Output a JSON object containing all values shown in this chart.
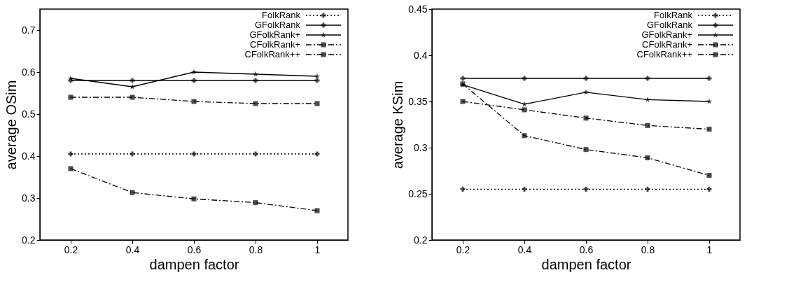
{
  "chart_data": [
    {
      "type": "line",
      "xlabel": "dampen factor",
      "ylabel": "average OSim",
      "x": [
        0.2,
        0.4,
        0.6,
        0.8,
        1
      ],
      "xlim": [
        0.1,
        1.1
      ],
      "xticks": [
        0.2,
        0.4,
        0.6,
        0.8,
        1
      ],
      "ylim": [
        0.2,
        0.75
      ],
      "yticks": [
        0.2,
        0.3,
        0.4,
        0.5,
        0.6,
        0.7
      ],
      "grid": false,
      "legend": "top right",
      "series": [
        {
          "name": "FolkRank",
          "color": "#000000",
          "marker": "cross",
          "line_style": "dotted",
          "values": [
            0.405,
            0.405,
            0.405,
            0.405,
            0.405
          ]
        },
        {
          "name": "GFolkRank",
          "color": "#000000",
          "marker": "cross",
          "line_style": "solid",
          "values": [
            0.58,
            0.58,
            0.58,
            0.58,
            0.58
          ]
        },
        {
          "name": "GFolkRank+",
          "color": "#000000",
          "marker": "star",
          "line_style": "solid",
          "values": [
            0.585,
            0.565,
            0.6,
            0.595,
            0.59
          ]
        },
        {
          "name": "CFolkRank+",
          "color": "#000000",
          "marker": "square",
          "line_style": "dashed",
          "values": [
            0.54,
            0.54,
            0.53,
            0.525,
            0.525
          ]
        },
        {
          "name": "CFolkRank++",
          "color": "#000000",
          "marker": "square",
          "line_style": "dashed",
          "values": [
            0.37,
            0.313,
            0.298,
            0.289,
            0.27
          ]
        }
      ]
    },
    {
      "type": "line",
      "xlabel": "dampen factor",
      "ylabel": "average KSim",
      "x": [
        0.2,
        0.4,
        0.6,
        0.8,
        1
      ],
      "xlim": [
        0.1,
        1.1
      ],
      "xticks": [
        0.2,
        0.4,
        0.6,
        0.8,
        1
      ],
      "ylim": [
        0.2,
        0.45
      ],
      "yticks": [
        0.2,
        0.25,
        0.3,
        0.35,
        0.4,
        0.45
      ],
      "grid": false,
      "legend": "top right",
      "series": [
        {
          "name": "FolkRank",
          "color": "#000000",
          "marker": "cross",
          "line_style": "dotted",
          "values": [
            0.255,
            0.255,
            0.255,
            0.255,
            0.255
          ]
        },
        {
          "name": "GFolkRank",
          "color": "#000000",
          "marker": "cross",
          "line_style": "solid",
          "values": [
            0.375,
            0.375,
            0.375,
            0.375,
            0.375
          ]
        },
        {
          "name": "GFolkRank+",
          "color": "#000000",
          "marker": "star",
          "line_style": "solid",
          "values": [
            0.368,
            0.347,
            0.36,
            0.352,
            0.35
          ]
        },
        {
          "name": "CFolkRank+",
          "color": "#000000",
          "marker": "square",
          "line_style": "dashed",
          "values": [
            0.35,
            0.341,
            0.332,
            0.324,
            0.32
          ]
        },
        {
          "name": "CFolkRank++",
          "color": "#000000",
          "marker": "square",
          "line_style": "dashed",
          "values": [
            0.369,
            0.313,
            0.298,
            0.289,
            0.27
          ]
        }
      ]
    }
  ]
}
